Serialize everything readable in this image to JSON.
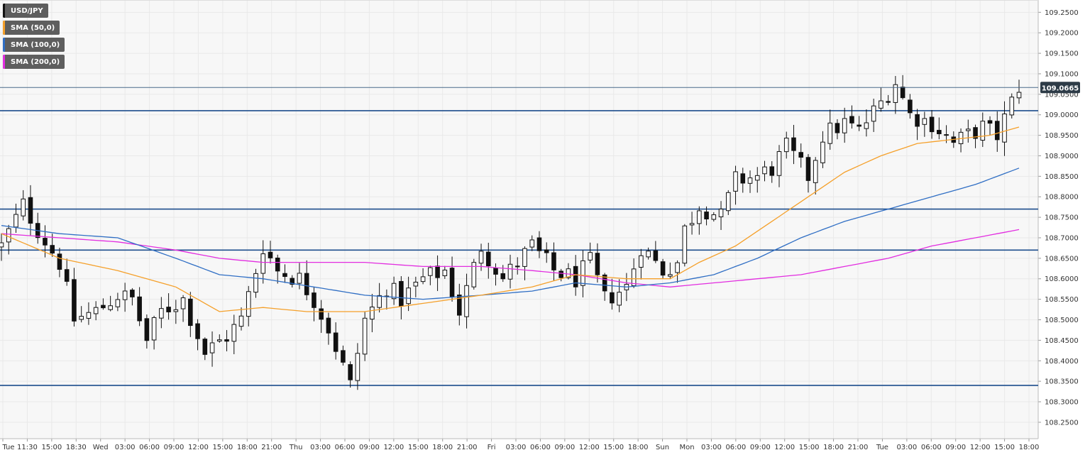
{
  "chart_data": {
    "type": "candlestick",
    "symbol": "USD/JPY",
    "last_price": "109.0665",
    "colors": {
      "up_body": "#ffffff",
      "down_body": "#111111",
      "wick": "#111111",
      "sma50": "#f5a02a",
      "sma100": "#2f6ec4",
      "sma200": "#e22de0",
      "level": "#1c4d8c",
      "last_line": "#4a6a8a",
      "grid": "#e9e9e9",
      "price_tag": "#2d3b47"
    },
    "legend": [
      {
        "label": "USD/JPY",
        "color": "#111111"
      },
      {
        "label": "SMA (50,0)",
        "color": "#f5a02a"
      },
      {
        "label": "SMA (100,0)",
        "color": "#2f6ec4"
      },
      {
        "label": "SMA (200,0)",
        "color": "#e22de0"
      }
    ],
    "ylim": [
      108.21,
      109.28
    ],
    "y_ticks": [
      "109.2500",
      "109.2000",
      "109.1500",
      "109.1000",
      "109.0500",
      "109.0000",
      "108.9500",
      "108.9000",
      "108.8500",
      "108.8000",
      "108.7500",
      "108.7000",
      "108.6500",
      "108.6000",
      "108.5500",
      "108.5000",
      "108.4500",
      "108.4000",
      "108.3500",
      "108.3000",
      "108.2500"
    ],
    "x_ticks": [
      "Tue",
      "11:30",
      "15:00",
      "18:30",
      "Wed",
      "03:00",
      "06:00",
      "09:00",
      "12:00",
      "15:00",
      "18:00",
      "21:00",
      "Thu",
      "03:00",
      "06:00",
      "09:00",
      "12:00",
      "15:00",
      "18:00",
      "21:00",
      "Fri",
      "03:00",
      "06:00",
      "09:00",
      "12:00",
      "15:00",
      "18:00",
      "Sun",
      "Mon",
      "03:00",
      "06:00",
      "09:00",
      "12:00",
      "15:00",
      "18:00",
      "21:00",
      "Tue",
      "03:00",
      "06:00",
      "09:00",
      "12:00",
      "15:00",
      "18:00"
    ],
    "horizontal_levels": [
      109.01,
      108.77,
      108.67,
      108.34
    ],
    "close_anchors": [
      [
        0,
        108.68
      ],
      [
        3,
        108.78
      ],
      [
        5,
        108.72
      ],
      [
        8,
        108.64
      ],
      [
        10,
        108.5
      ],
      [
        13,
        108.52
      ],
      [
        16,
        108.56
      ],
      [
        18,
        108.55
      ],
      [
        20,
        108.45
      ],
      [
        22,
        108.52
      ],
      [
        25,
        108.55
      ],
      [
        28,
        108.42
      ],
      [
        31,
        108.46
      ],
      [
        33,
        108.5
      ],
      [
        36,
        108.68
      ],
      [
        38,
        108.62
      ],
      [
        41,
        108.6
      ],
      [
        43,
        108.55
      ],
      [
        45,
        108.48
      ],
      [
        48,
        108.34
      ],
      [
        50,
        108.5
      ],
      [
        53,
        108.58
      ],
      [
        55,
        108.55
      ],
      [
        58,
        108.6
      ],
      [
        61,
        108.62
      ],
      [
        63,
        108.52
      ],
      [
        66,
        108.68
      ],
      [
        69,
        108.6
      ],
      [
        71,
        108.64
      ],
      [
        73,
        108.68
      ],
      [
        76,
        108.62
      ],
      [
        79,
        108.6
      ],
      [
        81,
        108.64
      ],
      [
        83,
        108.55
      ],
      [
        86,
        108.58
      ],
      [
        88,
        108.68
      ],
      [
        91,
        108.62
      ],
      [
        93,
        108.64
      ],
      [
        94,
        108.72
      ],
      [
        96,
        108.78
      ],
      [
        99,
        108.75
      ],
      [
        101,
        108.84
      ],
      [
        104,
        108.85
      ],
      [
        106,
        108.87
      ],
      [
        108,
        108.92
      ],
      [
        111,
        108.85
      ],
      [
        113,
        108.95
      ],
      [
        116,
        108.98
      ],
      [
        118,
        108.96
      ],
      [
        121,
        109.03
      ],
      [
        123,
        109.08
      ],
      [
        125,
        109.0
      ],
      [
        128,
        108.98
      ],
      [
        131,
        108.93
      ],
      [
        133,
        108.95
      ],
      [
        135,
        108.97
      ],
      [
        137,
        108.95
      ],
      [
        139,
        109.03
      ],
      [
        140,
        109.07
      ]
    ],
    "sma50": [
      [
        0,
        108.71
      ],
      [
        8,
        108.65
      ],
      [
        16,
        108.62
      ],
      [
        24,
        108.58
      ],
      [
        30,
        108.52
      ],
      [
        36,
        108.53
      ],
      [
        42,
        108.52
      ],
      [
        50,
        108.52
      ],
      [
        58,
        108.54
      ],
      [
        66,
        108.56
      ],
      [
        73,
        108.58
      ],
      [
        79,
        108.61
      ],
      [
        86,
        108.6
      ],
      [
        92,
        108.6
      ],
      [
        96,
        108.64
      ],
      [
        101,
        108.68
      ],
      [
        106,
        108.74
      ],
      [
        111,
        108.8
      ],
      [
        116,
        108.86
      ],
      [
        121,
        108.9
      ],
      [
        126,
        108.93
      ],
      [
        131,
        108.94
      ],
      [
        136,
        108.95
      ],
      [
        140,
        108.97
      ]
    ],
    "sma100": [
      [
        0,
        108.73
      ],
      [
        8,
        108.71
      ],
      [
        16,
        108.7
      ],
      [
        24,
        108.65
      ],
      [
        30,
        108.61
      ],
      [
        36,
        108.6
      ],
      [
        43,
        108.58
      ],
      [
        50,
        108.56
      ],
      [
        58,
        108.55
      ],
      [
        66,
        108.56
      ],
      [
        73,
        108.57
      ],
      [
        79,
        108.59
      ],
      [
        86,
        108.58
      ],
      [
        92,
        108.59
      ],
      [
        98,
        108.61
      ],
      [
        104,
        108.65
      ],
      [
        110,
        108.7
      ],
      [
        116,
        108.74
      ],
      [
        122,
        108.77
      ],
      [
        128,
        108.8
      ],
      [
        134,
        108.83
      ],
      [
        140,
        108.87
      ]
    ],
    "sma200": [
      [
        0,
        108.71
      ],
      [
        8,
        108.7
      ],
      [
        16,
        108.69
      ],
      [
        24,
        108.67
      ],
      [
        30,
        108.65
      ],
      [
        36,
        108.64
      ],
      [
        43,
        108.64
      ],
      [
        50,
        108.64
      ],
      [
        58,
        108.63
      ],
      [
        66,
        108.63
      ],
      [
        73,
        108.62
      ],
      [
        79,
        108.61
      ],
      [
        86,
        108.59
      ],
      [
        92,
        108.58
      ],
      [
        98,
        108.59
      ],
      [
        104,
        108.6
      ],
      [
        110,
        108.61
      ],
      [
        116,
        108.63
      ],
      [
        122,
        108.65
      ],
      [
        128,
        108.68
      ],
      [
        134,
        108.7
      ],
      [
        140,
        108.72
      ]
    ]
  }
}
